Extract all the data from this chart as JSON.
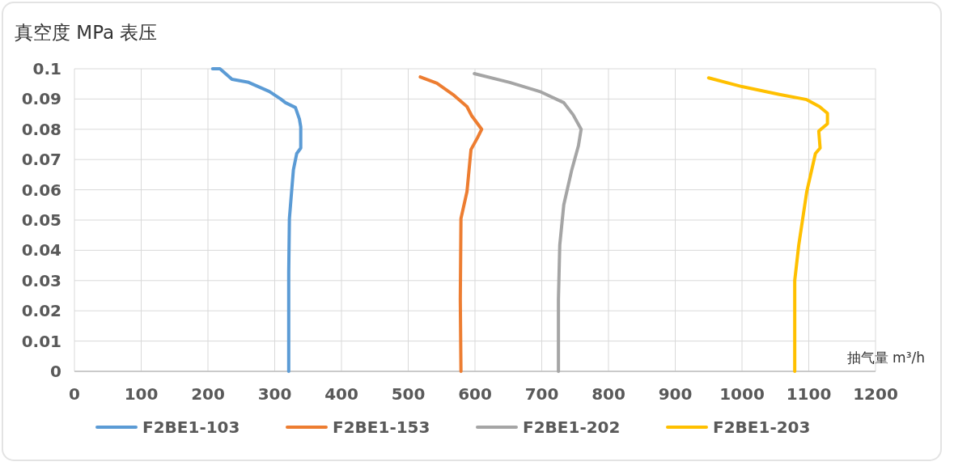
{
  "chart_data": {
    "type": "line",
    "ylabel": "真空度 MPa 表压",
    "xlabel": "抽气量 m³/h",
    "xlim": [
      0,
      1200
    ],
    "ylim": [
      0,
      0.1
    ],
    "xticks": [
      0,
      100,
      200,
      300,
      400,
      500,
      600,
      700,
      800,
      900,
      1000,
      1100,
      1200
    ],
    "yticks": [
      0,
      0.01,
      0.02,
      0.03,
      0.04,
      0.05,
      0.06,
      0.07,
      0.08,
      0.09,
      0.1
    ],
    "grid": true,
    "legend": "bottom",
    "marker": "none",
    "line_style": "solid",
    "series": [
      {
        "name": "F2BE1-103",
        "color": "#5b9bd5",
        "x": [
          207,
          218,
          236,
          261,
          292,
          309,
          316,
          331,
          337,
          339,
          339,
          333,
          328,
          322,
          321,
          321
        ],
        "values": [
          0.1,
          0.1,
          0.0965,
          0.0955,
          0.0925,
          0.09,
          0.0888,
          0.0872,
          0.0834,
          0.0808,
          0.0738,
          0.072,
          0.0666,
          0.0505,
          0.0326,
          0
        ]
      },
      {
        "name": "F2BE1-153",
        "color": "#ed7d31",
        "x": [
          518,
          543,
          567,
          588,
          595,
          610,
          604,
          594,
          588,
          579,
          578,
          579
        ],
        "values": [
          0.0973,
          0.0952,
          0.0915,
          0.0875,
          0.0845,
          0.08,
          0.0773,
          0.0733,
          0.0594,
          0.0505,
          0.0238,
          0
        ]
      },
      {
        "name": "F2BE1-202",
        "color": "#a5a5a5",
        "x": [
          599,
          652,
          697,
          733,
          747,
          759,
          755,
          745,
          733,
          727,
          725,
          725
        ],
        "values": [
          0.0984,
          0.0955,
          0.0925,
          0.0888,
          0.0848,
          0.08,
          0.0746,
          0.0666,
          0.055,
          0.0417,
          0.0238,
          0
        ]
      },
      {
        "name": "F2BE1-203",
        "color": "#ffc000",
        "x": [
          950,
          1000,
          1056,
          1097,
          1116,
          1128,
          1128,
          1115,
          1117,
          1110,
          1097,
          1085,
          1079,
          1079
        ],
        "values": [
          0.097,
          0.0941,
          0.0915,
          0.0898,
          0.0875,
          0.0853,
          0.0818,
          0.0794,
          0.0738,
          0.072,
          0.0594,
          0.0417,
          0.03,
          0
        ]
      }
    ]
  }
}
